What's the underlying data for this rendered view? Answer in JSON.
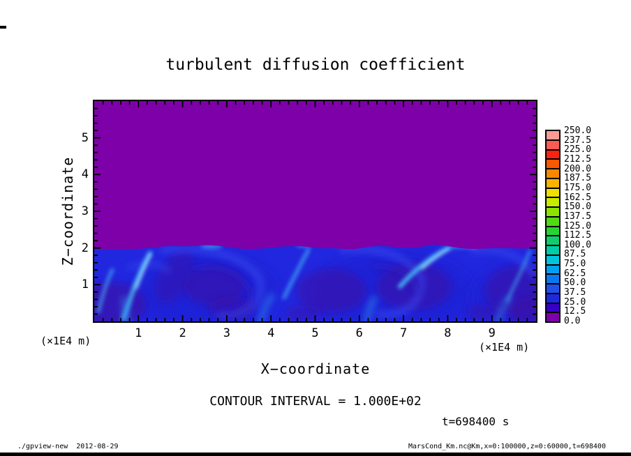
{
  "window": {
    "background": "#ffffff"
  },
  "chart_data": {
    "type": "heatmap",
    "subtype": "filled-contour",
    "title": "turbulent diffusion coefficient",
    "xlabel": "X−coordinate",
    "ylabel": "Z−coordinate",
    "x_axis_unit": "(×1E4 m)",
    "y_axis_unit": "(×1E4 m)",
    "xlim": [
      0,
      10
    ],
    "zlim": [
      0,
      6
    ],
    "x_ticks": [
      1,
      2,
      3,
      4,
      5,
      6,
      7,
      8,
      9
    ],
    "z_ticks": [
      1,
      2,
      3,
      4,
      5
    ],
    "x_minor_step": 0.2,
    "z_minor_step": 0.2,
    "grid": false,
    "colorbar": {
      "position": "right",
      "levels": [
        "0.0",
        "12.5",
        "25.0",
        "37.5",
        "50.0",
        "62.5",
        "75.0",
        "87.5",
        "100.0",
        "112.5",
        "125.0",
        "137.5",
        "150.0",
        "162.5",
        "175.0",
        "187.5",
        "200.0",
        "212.5",
        "225.0",
        "237.5",
        "250.0"
      ],
      "colors": [
        "#7E00A8",
        "#3800C4",
        "#2028DC",
        "#2050E8",
        "#0C78F0",
        "#00A0F0",
        "#00C4DC",
        "#00CCA8",
        "#10CC6C",
        "#28D434",
        "#50DC14",
        "#8CE400",
        "#C8EC00",
        "#F0E000",
        "#F8B400",
        "#F88800",
        "#F85800",
        "#F82410",
        "#F85C54",
        "#F89C94"
      ]
    },
    "field_summary": {
      "upper_region": {
        "z_range": [
          2,
          6
        ],
        "value_band": "0.0–12.5",
        "color": "#7E00A8"
      },
      "boundary_layer": {
        "z_range": [
          0,
          2
        ],
        "value_band": "mostly 12.5–75 with bright filaments up to ≈100",
        "base_color": "#2127DE"
      },
      "interface_z": 2.0,
      "notable_features": "convective eddies with dark low-value cores near z≈0.5–1.2 at x≈0.3, 2.7, 5.4, 7.2, 9.6; bright high-value filaments rising to the z=2 interface near x≈1.2, 4.8, 7.9, 9.8"
    },
    "annotations": {
      "contour_interval": "CONTOUR INTERVAL = 1.000E+02",
      "time": "t=698400 s"
    }
  },
  "footer": {
    "left": "./gpview-new  2012-08-29",
    "right": "MarsCond_Km.nc@Km,x=0:100000,z=0:60000,t=698400"
  }
}
